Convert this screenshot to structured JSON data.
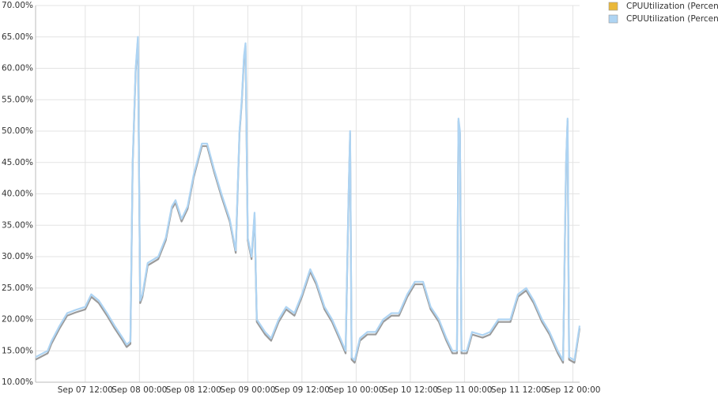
{
  "chart_data": {
    "type": "line",
    "series": [
      {
        "name": "CPUUtilization (Percent)",
        "color": "#eab839",
        "line_color": "#9a9a9a",
        "values": [
          13.6,
          14.6,
          16.1,
          18.6,
          20.6,
          21.1,
          21.6,
          23.6,
          22.6,
          20.6,
          18.6,
          16.6,
          15.6,
          16.1,
          44.6,
          59.6,
          64.6,
          22.6,
          23.6,
          28.6,
          29.6,
          32.6,
          37.6,
          38.6,
          35.6,
          37.6,
          42.6,
          47.6,
          47.6,
          43.6,
          39.6,
          35.6,
          30.6,
          49.6,
          54.6,
          61.6,
          63.6,
          32.6,
          29.6,
          36.6,
          19.6,
          17.6,
          16.6,
          19.6,
          21.6,
          20.6,
          23.6,
          27.6,
          25.6,
          21.6,
          19.6,
          16.6,
          14.6,
          39.6,
          49.6,
          13.6,
          13.1,
          16.6,
          17.6,
          17.6,
          19.6,
          20.6,
          20.6,
          23.6,
          25.6,
          25.6,
          21.6,
          19.6,
          16.6,
          14.6,
          14.6,
          51.6,
          49.6,
          14.6,
          14.6,
          17.6,
          17.1,
          17.6,
          19.6,
          19.6,
          23.6,
          24.6,
          22.6,
          19.6,
          17.6,
          14.6,
          13.1,
          44.6,
          51.6,
          13.6,
          13.1,
          18.6
        ]
      },
      {
        "name": "CPUUtilization (Percent)",
        "color": "#aed4f3",
        "line_color": "#aed4f3",
        "values": [
          14,
          15,
          16.5,
          19,
          21,
          21.5,
          22,
          24,
          23,
          21,
          19,
          17,
          16,
          16.5,
          45,
          60,
          65,
          23,
          24,
          29,
          30,
          33,
          38,
          39,
          36,
          38,
          43,
          48,
          48,
          44,
          40,
          36,
          31,
          50,
          55,
          62,
          64,
          33,
          30,
          37,
          20,
          18,
          17,
          20,
          22,
          21,
          24,
          28,
          26,
          22,
          20,
          17,
          15,
          40,
          50,
          14,
          13.5,
          17,
          18,
          18,
          20,
          21,
          21,
          24,
          26,
          26,
          22,
          20,
          17,
          15,
          15,
          52,
          50,
          15,
          15,
          18,
          17.5,
          18,
          20,
          20,
          24,
          25,
          23,
          20,
          18,
          15,
          13.5,
          45,
          52,
          14,
          13.5,
          19
        ]
      }
    ],
    "x": [
      "Sep 07 01:00",
      "Sep 07 03:40",
      "Sep 07 04:30",
      "Sep 07 06:20",
      "Sep 07 08:00",
      "Sep 07 09:50",
      "Sep 07 12:00",
      "Sep 07 13:20",
      "Sep 07 15:00",
      "Sep 07 16:50",
      "Sep 07 18:30",
      "Sep 07 20:20",
      "Sep 07 21:10",
      "Sep 07 22:00",
      "Sep 07 22:30",
      "Sep 07 23:10",
      "Sep 07 23:40",
      "Sep 08 00:10",
      "Sep 08 00:40",
      "Sep 08 01:50",
      "Sep 08 04:10",
      "Sep 08 05:50",
      "Sep 08 07:10",
      "Sep 08 08:00",
      "Sep 08 09:20",
      "Sep 08 10:40",
      "Sep 08 12:00",
      "Sep 08 13:50",
      "Sep 08 15:00",
      "Sep 08 16:30",
      "Sep 08 18:10",
      "Sep 08 20:00",
      "Sep 08 21:20",
      "Sep 08 22:10",
      "Sep 08 22:40",
      "Sep 08 23:10",
      "Sep 08 23:30",
      "Sep 09 00:00",
      "Sep 09 00:50",
      "Sep 09 01:30",
      "Sep 09 02:00",
      "Sep 09 03:50",
      "Sep 09 05:10",
      "Sep 09 06:50",
      "Sep 09 08:30",
      "Sep 09 10:20",
      "Sep 09 12:00",
      "Sep 09 13:50",
      "Sep 09 15:10",
      "Sep 09 17:00",
      "Sep 09 18:40",
      "Sep 09 20:30",
      "Sep 09 21:40",
      "Sep 09 22:20",
      "Sep 09 22:40",
      "Sep 09 23:00",
      "Sep 09 23:40",
      "Sep 10 00:50",
      "Sep 10 02:30",
      "Sep 10 04:20",
      "Sep 10 06:00",
      "Sep 10 07:50",
      "Sep 10 09:30",
      "Sep 10 11:20",
      "Sep 10 13:00",
      "Sep 10 14:50",
      "Sep 10 16:30",
      "Sep 10 18:20",
      "Sep 10 20:00",
      "Sep 10 21:20",
      "Sep 10 22:20",
      "Sep 10 22:40",
      "Sep 10 23:00",
      "Sep 10 23:20",
      "Sep 11 00:30",
      "Sep 11 01:40",
      "Sep 11 04:00",
      "Sep 11 05:40",
      "Sep 11 07:30",
      "Sep 11 10:10",
      "Sep 11 11:50",
      "Sep 11 13:40",
      "Sep 11 15:20",
      "Sep 11 17:10",
      "Sep 11 18:50",
      "Sep 11 20:40",
      "Sep 11 21:50",
      "Sep 11 22:30",
      "Sep 11 22:50",
      "Sep 11 23:10",
      "Sep 12 00:20",
      "Sep 12 01:30"
    ],
    "xlim": [
      "Sep 07 01:00",
      "Sep 12 01:30"
    ],
    "xticks": [
      "Sep 07 12:00",
      "Sep 08 00:00",
      "Sep 08 12:00",
      "Sep 09 00:00",
      "Sep 09 12:00",
      "Sep 10 00:00",
      "Sep 10 12:00",
      "Sep 11 00:00",
      "Sep 11 12:00",
      "Sep 12 00:00"
    ],
    "ylim": [
      10,
      70
    ],
    "yticks": [
      {
        "value": 10,
        "label": "10.00%"
      },
      {
        "value": 15,
        "label": "15.00%"
      },
      {
        "value": 20,
        "label": "20.00%"
      },
      {
        "value": 25,
        "label": "25.00%"
      },
      {
        "value": 30,
        "label": "30.00%"
      },
      {
        "value": 35,
        "label": "35.00%"
      },
      {
        "value": 40,
        "label": "40.00%"
      },
      {
        "value": 45,
        "label": "45.00%"
      },
      {
        "value": 50,
        "label": "50.00%"
      },
      {
        "value": 55,
        "label": "55.00%"
      },
      {
        "value": 60,
        "label": "60.00%"
      },
      {
        "value": 65,
        "label": "65.00%"
      },
      {
        "value": 70,
        "label": "70.00%"
      }
    ],
    "grid": true
  }
}
